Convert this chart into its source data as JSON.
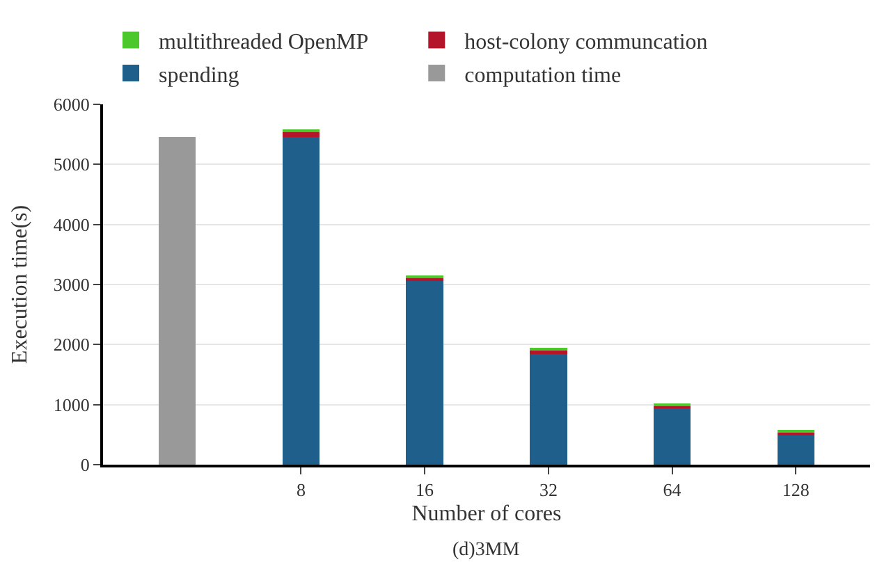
{
  "chart_data": {
    "type": "bar",
    "stacked": true,
    "xlabel": "Number of cores",
    "ylabel": "Execution time(s)",
    "categories": [
      null,
      "8",
      "16",
      "32",
      "64",
      "128"
    ],
    "series": [
      {
        "name": "computation time",
        "color": "#999999",
        "values": [
          5450,
          null,
          null,
          null,
          null,
          null
        ]
      },
      {
        "name": "spending",
        "color": "#1f5f8b",
        "values": [
          null,
          5450,
          3060,
          1840,
          940,
          490
        ]
      },
      {
        "name": "host-colony communcation",
        "color": "#b5152b",
        "values": [
          null,
          90,
          50,
          70,
          50,
          60
        ]
      },
      {
        "name": "multithreaded OpenMP",
        "color": "#4cc72c",
        "values": [
          null,
          30,
          30,
          30,
          30,
          30
        ]
      }
    ],
    "ylim": [
      0,
      6000
    ],
    "yticks": [
      0,
      1000,
      2000,
      3000,
      4000,
      5000,
      6000
    ],
    "grid": "y",
    "legend": "top left",
    "annotations": [
      "(d)3MM"
    ]
  }
}
